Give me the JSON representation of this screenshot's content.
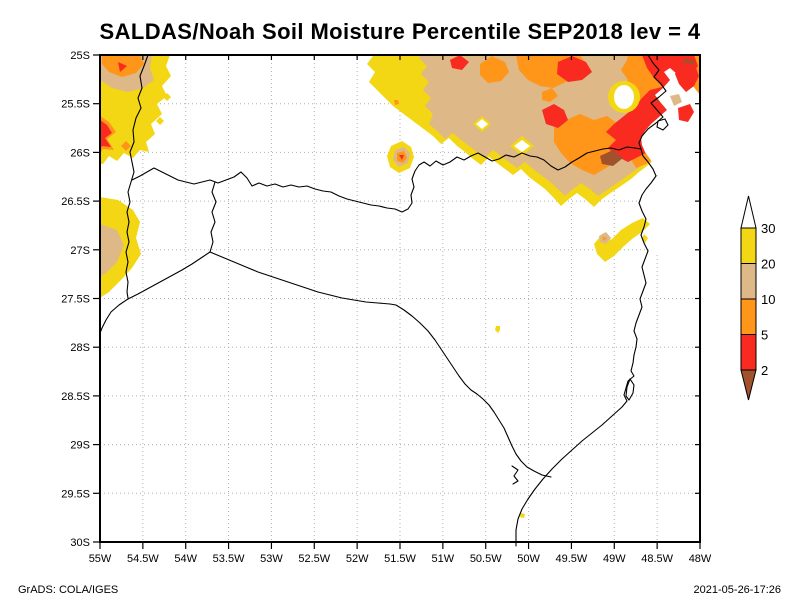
{
  "title": "SALDAS/Noah Soil Moisture Percentile SEP2018 lev = 4",
  "footer": {
    "left": "GrADS: COLA/IGES",
    "right": "2021-05-26-17:26"
  },
  "axes": {
    "lat_labels": [
      "25S",
      "25.5S",
      "26S",
      "26.5S",
      "27S",
      "27.5S",
      "28S",
      "28.5S",
      "29S",
      "29.5S",
      "30S"
    ],
    "lon_labels": [
      "55W",
      "54.5W",
      "54W",
      "53.5W",
      "53W",
      "52.5W",
      "52W",
      "51.5W",
      "51W",
      "50.5W",
      "50W",
      "49.5W",
      "49W",
      "48.5W",
      "48W"
    ]
  },
  "colorbar": {
    "tick_labels": [
      "30",
      "20",
      "10",
      "5",
      "2"
    ],
    "band_colors_top_to_bottom": [
      "#F3D714",
      "#DEB887",
      "#FF9519",
      "#F92A20"
    ],
    "top_triangle_color": "#FFFFFF",
    "bottom_triangle_color": "#A0522D"
  },
  "chart_data": {
    "type": "heatmap",
    "title": "SALDAS/Noah Soil Moisture Percentile SEP2018 lev = 4",
    "dataset": "SALDAS/Noah",
    "variable": "Soil Moisture Percentile",
    "time": "SEP2018",
    "level": "4",
    "lat_range_deg_south": [
      25,
      30
    ],
    "lon_range_deg_west": [
      55,
      48
    ],
    "grid_spacing_deg": 0.5,
    "percentile_levels": [
      2,
      5,
      10,
      20,
      30
    ],
    "palette": {
      "p20_30": "#F3D714",
      "p10_20": "#DEB887",
      "p5_10": "#FF9519",
      "p2_5": "#F92A20",
      "below_2": "#A0522D",
      "above_30": "#FFFFFF"
    },
    "legend_position": "right",
    "grid": "dotted",
    "region_summary": "Dry anomalies (soil moisture below the 30th percentile) cover the northeast quadrant of the domain (about 52W-48W, 25S-26.8S) with cores below the 2nd-5th percentile near 49W 25.5S, and a band along the western edge near 55W from 25S to 27.4S; an isolated dry spot sits near 51.5W 26.1S; the rest of the domain (Santa Catarina interior and everything south of about 27.5S) is above the 30th percentile and shown white.",
    "geography": "Map window over Santa Catarina state, Brazil, with state borders and Atlantic coastline drawn in black."
  }
}
